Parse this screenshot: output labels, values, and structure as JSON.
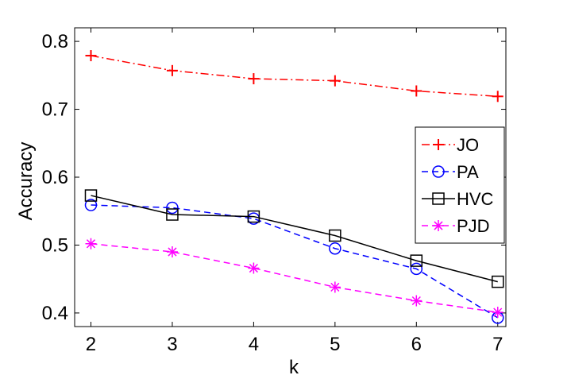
{
  "chart_data": {
    "type": "line",
    "title": "",
    "xlabel": "k",
    "ylabel": "Accuracy",
    "xlim": [
      1.8,
      7.1
    ],
    "ylim": [
      0.38,
      0.82
    ],
    "grid": false,
    "legend_position": "right",
    "x": [
      2,
      3,
      4,
      5,
      6,
      7
    ],
    "x_ticks": [
      "2",
      "3",
      "4",
      "5",
      "6",
      "7"
    ],
    "y_ticks": [
      0.4,
      0.5,
      0.6,
      0.7,
      0.8
    ],
    "y_tick_labels": [
      "0.4",
      "0.5",
      "0.6",
      "0.7",
      "0.8"
    ],
    "series": [
      {
        "name": "JO",
        "values": [
          0.779,
          0.757,
          0.745,
          0.742,
          0.727,
          0.719
        ],
        "color": "#ff0000",
        "linestyle": "dashdot",
        "marker": "plus"
      },
      {
        "name": "PA",
        "values": [
          0.559,
          0.555,
          0.539,
          0.495,
          0.465,
          0.393
        ],
        "color": "#0000ff",
        "linestyle": "dashed",
        "marker": "circle"
      },
      {
        "name": "HVC",
        "values": [
          0.573,
          0.545,
          0.542,
          0.514,
          0.477,
          0.446
        ],
        "color": "#000000",
        "linestyle": "solid",
        "marker": "square"
      },
      {
        "name": "PJD",
        "values": [
          0.502,
          0.49,
          0.466,
          0.438,
          0.418,
          0.401
        ],
        "color": "#ff00ff",
        "linestyle": "dashed",
        "marker": "asterisk"
      }
    ]
  }
}
